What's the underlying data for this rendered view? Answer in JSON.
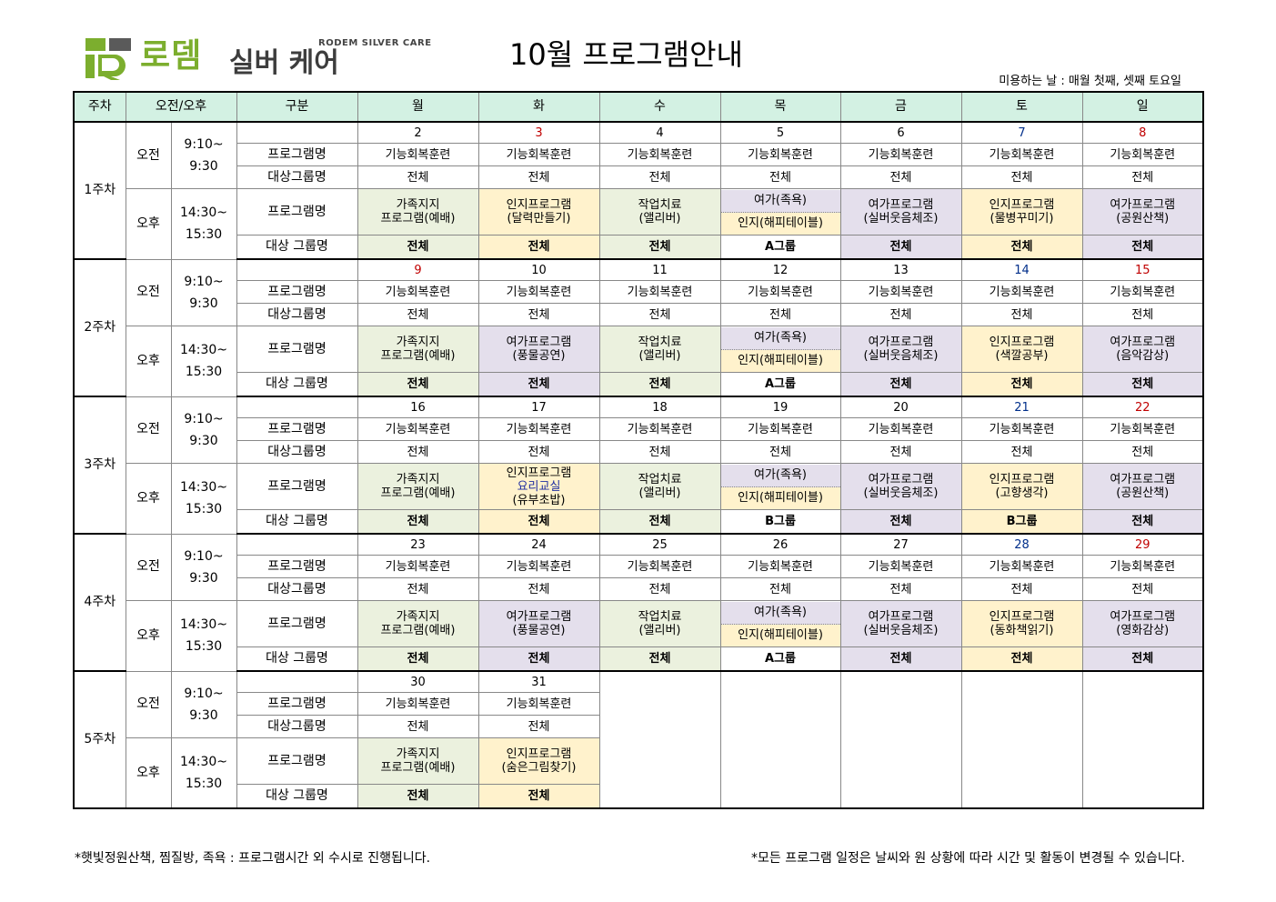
{
  "header": {
    "logo_brand": "로뎀",
    "logo_small": "RODEM SILVER CARE",
    "logo_sub": "실버 케어",
    "title": "10월  프로그램안내",
    "usage_note": "미용하는 날 : 매월 첫째, 셋째 토요일"
  },
  "colors": {
    "green": "#ebf1de",
    "yellow": "#fff2cc",
    "purple": "#e4dfec",
    "header": "#d3f1e3",
    "red": "#c00000",
    "blue": "#002e8a"
  },
  "columns": [
    "주차",
    "오전/오후",
    "구분",
    "월",
    "화",
    "수",
    "목",
    "금",
    "토",
    "일"
  ],
  "labels": {
    "am": "오전",
    "pm": "오후",
    "am_time": "9:10~\n9:30",
    "pm_time": "14:30~\n15:30",
    "program_name": "프로그램명",
    "target_group": "대상그룹명",
    "target_group_pm": "대상 그룹명"
  },
  "weeks": [
    {
      "label": "1주차",
      "dates": [
        {
          "t": "2",
          "c": ""
        },
        {
          "t": "3",
          "c": "red"
        },
        {
          "t": "4",
          "c": ""
        },
        {
          "t": "5",
          "c": ""
        },
        {
          "t": "6",
          "c": ""
        },
        {
          "t": "7",
          "c": "blue"
        },
        {
          "t": "8",
          "c": "red"
        }
      ],
      "am_program": [
        "기능회복훈련",
        "기능회복훈련",
        "기능회복훈련",
        "기능회복훈련",
        "기능회복훈련",
        "기능회복훈련",
        "기능회복훈련"
      ],
      "am_group": [
        "전체",
        "전체",
        "전체",
        "전체",
        "전체",
        "전체",
        "전체"
      ],
      "pm_program": [
        {
          "bg": "green",
          "lines": [
            "가족지지",
            "프로그램(예배)"
          ]
        },
        {
          "bg": "yellow",
          "lines": [
            "인지프로그램",
            "(달력만들기)"
          ]
        },
        {
          "bg": "green",
          "lines": [
            "작업치료",
            "(앨리버)"
          ]
        },
        {
          "mix": true,
          "top": "여가(족욕)",
          "bot": "인지(해피테이블)"
        },
        {
          "bg": "purple",
          "lines": [
            "여가프로그램",
            "(실버웃음체조)"
          ]
        },
        {
          "bg": "yellow",
          "lines": [
            "인지프로그램",
            "(물병꾸미기)"
          ]
        },
        {
          "bg": "purple",
          "lines": [
            "여가프로그램",
            "(공원산책)"
          ]
        }
      ],
      "pm_group": [
        {
          "t": "전체",
          "bg": "green"
        },
        {
          "t": "전체",
          "bg": "yellow"
        },
        {
          "t": "전체",
          "bg": "green"
        },
        {
          "t": "A그룹",
          "bg": ""
        },
        {
          "t": "전체",
          "bg": "purple"
        },
        {
          "t": "전체",
          "bg": "yellow"
        },
        {
          "t": "전체",
          "bg": "purple"
        }
      ]
    },
    {
      "label": "2주차",
      "dates": [
        {
          "t": "9",
          "c": "red"
        },
        {
          "t": "10",
          "c": ""
        },
        {
          "t": "11",
          "c": ""
        },
        {
          "t": "12",
          "c": ""
        },
        {
          "t": "13",
          "c": ""
        },
        {
          "t": "14",
          "c": "blue"
        },
        {
          "t": "15",
          "c": "red"
        }
      ],
      "am_program": [
        "기능회복훈련",
        "기능회복훈련",
        "기능회복훈련",
        "기능회복훈련",
        "기능회복훈련",
        "기능회복훈련",
        "기능회복훈련"
      ],
      "am_group": [
        "전체",
        "전체",
        "전체",
        "전체",
        "전체",
        "전체",
        "전체"
      ],
      "pm_program": [
        {
          "bg": "green",
          "lines": [
            "가족지지",
            "프로그램(예배)"
          ]
        },
        {
          "bg": "purple",
          "lines": [
            "여가프로그램",
            "(풍물공연)"
          ]
        },
        {
          "bg": "green",
          "lines": [
            "작업치료",
            "(앨리버)"
          ]
        },
        {
          "mix": true,
          "top": "여가(족욕)",
          "bot": "인지(해피테이블)"
        },
        {
          "bg": "purple",
          "lines": [
            "여가프로그램",
            "(실버웃음체조)"
          ]
        },
        {
          "bg": "yellow",
          "lines": [
            "인지프로그램",
            "(색깔공부)"
          ]
        },
        {
          "bg": "purple",
          "lines": [
            "여가프로그램",
            "(음악감상)"
          ]
        }
      ],
      "pm_group": [
        {
          "t": "전체",
          "bg": "green"
        },
        {
          "t": "전체",
          "bg": "purple"
        },
        {
          "t": "전체",
          "bg": "green"
        },
        {
          "t": "A그룹",
          "bg": ""
        },
        {
          "t": "전체",
          "bg": "purple"
        },
        {
          "t": "전체",
          "bg": "yellow"
        },
        {
          "t": "전체",
          "bg": "purple"
        }
      ]
    },
    {
      "label": "3주차",
      "dates": [
        {
          "t": "16",
          "c": ""
        },
        {
          "t": "17",
          "c": ""
        },
        {
          "t": "18",
          "c": ""
        },
        {
          "t": "19",
          "c": ""
        },
        {
          "t": "20",
          "c": ""
        },
        {
          "t": "21",
          "c": "blue"
        },
        {
          "t": "22",
          "c": "red"
        }
      ],
      "am_program": [
        "기능회복훈련",
        "기능회복훈련",
        "기능회복훈련",
        "기능회복훈련",
        "기능회복훈련",
        "기능회복훈련",
        "기능회복훈련"
      ],
      "am_group": [
        "전체",
        "전체",
        "전체",
        "전체",
        "전체",
        "전체",
        "전체"
      ],
      "pm_program": [
        {
          "bg": "green",
          "lines": [
            "가족지지",
            "프로그램(예배)"
          ]
        },
        {
          "bg": "yellow",
          "lines": [
            "인지프로그램",
            "요리교실",
            "(유부초밥)"
          ],
          "navy_line": 1
        },
        {
          "bg": "green",
          "lines": [
            "작업치료",
            "(앨리버)"
          ]
        },
        {
          "mix": true,
          "top": "여가(족욕)",
          "bot": "인지(해피테이블)"
        },
        {
          "bg": "purple",
          "lines": [
            "여가프로그램",
            "(실버웃음체조)"
          ]
        },
        {
          "bg": "yellow",
          "lines": [
            "인지프로그램",
            "(고향생각)"
          ]
        },
        {
          "bg": "purple",
          "lines": [
            "여가프로그램",
            "(공원산책)"
          ]
        }
      ],
      "pm_group": [
        {
          "t": "전체",
          "bg": "green"
        },
        {
          "t": "전체",
          "bg": "yellow"
        },
        {
          "t": "전체",
          "bg": "green"
        },
        {
          "t": "B그룹",
          "bg": ""
        },
        {
          "t": "전체",
          "bg": "purple"
        },
        {
          "t": "B그룹",
          "bg": "yellow"
        },
        {
          "t": "전체",
          "bg": "purple"
        }
      ]
    },
    {
      "label": "4주차",
      "dates": [
        {
          "t": "23",
          "c": ""
        },
        {
          "t": "24",
          "c": ""
        },
        {
          "t": "25",
          "c": ""
        },
        {
          "t": "26",
          "c": ""
        },
        {
          "t": "27",
          "c": ""
        },
        {
          "t": "28",
          "c": "blue"
        },
        {
          "t": "29",
          "c": "red"
        }
      ],
      "am_program": [
        "기능회복훈련",
        "기능회복훈련",
        "기능회복훈련",
        "기능회복훈련",
        "기능회복훈련",
        "기능회복훈련",
        "기능회복훈련"
      ],
      "am_group": [
        "전체",
        "전체",
        "전체",
        "전체",
        "전체",
        "전체",
        "전체"
      ],
      "pm_program": [
        {
          "bg": "green",
          "lines": [
            "가족지지",
            "프로그램(예배)"
          ]
        },
        {
          "bg": "purple",
          "lines": [
            "여가프로그램",
            "(풍물공연)"
          ]
        },
        {
          "bg": "green",
          "lines": [
            "작업치료",
            "(앨리버)"
          ]
        },
        {
          "mix": true,
          "top": "여가(족욕)",
          "bot": "인지(해피테이블)"
        },
        {
          "bg": "purple",
          "lines": [
            "여가프로그램",
            "(실버웃음체조)"
          ]
        },
        {
          "bg": "yellow",
          "lines": [
            "인지프로그램",
            "(동화책읽기)"
          ]
        },
        {
          "bg": "purple",
          "lines": [
            "여가프로그램",
            "(영화감상)"
          ]
        }
      ],
      "pm_group": [
        {
          "t": "전체",
          "bg": "green"
        },
        {
          "t": "전체",
          "bg": "purple"
        },
        {
          "t": "전체",
          "bg": "green"
        },
        {
          "t": "A그룹",
          "bg": ""
        },
        {
          "t": "전체",
          "bg": "purple"
        },
        {
          "t": "전체",
          "bg": "yellow"
        },
        {
          "t": "전체",
          "bg": "purple"
        }
      ]
    },
    {
      "label": "5주차",
      "dates": [
        {
          "t": "30",
          "c": ""
        },
        {
          "t": "31",
          "c": ""
        }
      ],
      "am_program": [
        "기능회복훈련",
        "기능회복훈련"
      ],
      "am_group": [
        "전체",
        "전체"
      ],
      "pm_program": [
        {
          "bg": "green",
          "lines": [
            "가족지지",
            "프로그램(예배)"
          ]
        },
        {
          "bg": "yellow",
          "lines": [
            "인지프로그램",
            "(숨은그림찾기)"
          ]
        }
      ],
      "pm_group": [
        {
          "t": "전체",
          "bg": "green"
        },
        {
          "t": "전체",
          "bg": "yellow"
        }
      ]
    }
  ],
  "footer": {
    "left": "*햇빛정원산책, 찜질방, 족욕 : 프로그램시간 외 수시로 진행됩니다.",
    "right": "*모든 프로그램 일정은 날씨와 원 상황에 따라 시간 및 활동이 변경될 수 있습니다."
  }
}
